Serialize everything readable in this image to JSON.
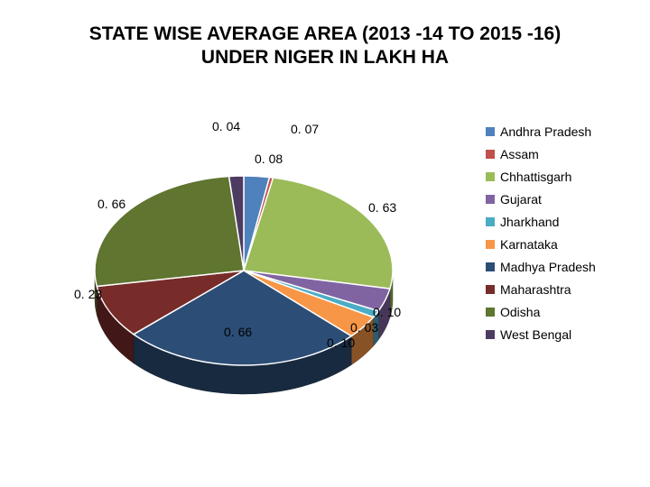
{
  "title": "STATE WISE AVERAGE AREA (2013 -14 TO 2015 -16)  UNDER NIGER IN LAKH HA",
  "title_fontsize": 21,
  "background_color": "#ffffff",
  "chart": {
    "type": "pie-3d",
    "slices": [
      {
        "label": "Andhra Pradesh",
        "value": 0.07,
        "color": "#4f81bd",
        "text": "0. 07"
      },
      {
        "label": "Assam",
        "value": 0.01,
        "color": "#c0504d",
        "text": ""
      },
      {
        "label": "Chhattisgarh",
        "value": 0.63,
        "color": "#9bbb59",
        "text": "0. 63"
      },
      {
        "label": "Gujarat",
        "value": 0.1,
        "color": "#8064a2",
        "text": "0. 10"
      },
      {
        "label": "Jharkhand",
        "value": 0.03,
        "color": "#4bacc6",
        "text": "0. 03"
      },
      {
        "label": "Karnataka",
        "value": 0.1,
        "color": "#f79646",
        "text": "0. 10"
      },
      {
        "label": "Madhya Pradesh",
        "value": 0.66,
        "color": "#2c4d75",
        "text": "0. 66"
      },
      {
        "label": "Maharashtra",
        "value": 0.23,
        "color": "#772c2a",
        "text": "0. 23"
      },
      {
        "label": "Odisha",
        "value": 0.66,
        "color": "#5f7530",
        "text": "0. 66"
      },
      {
        "label": "West Bengal",
        "value": 0.04,
        "color": "#4d3b62",
        "text": "0. 04"
      }
    ],
    "extras": {
      "label_008": "0. 08"
    },
    "outline_color": "#ffffff",
    "label_fontsize": 14,
    "legend_fontsize": 14,
    "depth_shade": "#555555"
  }
}
